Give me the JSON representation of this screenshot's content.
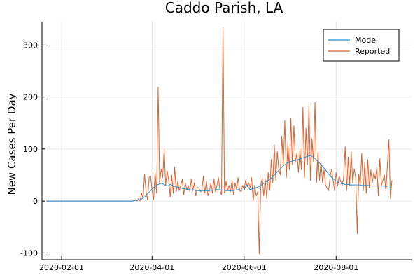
{
  "colors": {
    "model": "#1f8fd6",
    "reported": "#e0612c",
    "grid": "#e6e6e6",
    "axis": "#000000"
  },
  "chart_data": {
    "type": "line",
    "title": "Caddo Parish, LA",
    "xlabel": "",
    "ylabel": "New Cases Per Day",
    "xlim": [
      "2020-01-19",
      "2020-09-20"
    ],
    "ylim": [
      -113,
      345
    ],
    "x_ticks": [
      "2020-02-01",
      "2020-04-01",
      "2020-06-01",
      "2020-08-01"
    ],
    "y_ticks": [
      -100,
      0,
      100,
      200,
      300
    ],
    "grid": true,
    "legend_position": "top-right",
    "legend": [
      "Model",
      "Reported"
    ],
    "start_date": "2020-01-22",
    "series": [
      {
        "name": "Model",
        "values": [
          0,
          0,
          0,
          0,
          0,
          0,
          0,
          0,
          0,
          0,
          0,
          0,
          0,
          0,
          0,
          0,
          0,
          0,
          0,
          0,
          0,
          0,
          0,
          0,
          0,
          0,
          0,
          0,
          0,
          0,
          0,
          0,
          0,
          0,
          0,
          0,
          0,
          0,
          0,
          0,
          0,
          0,
          0,
          0,
          0,
          0,
          0,
          0,
          0,
          0,
          0,
          0,
          0,
          0,
          0,
          0,
          0,
          0,
          1,
          1,
          2,
          2,
          3,
          4,
          6,
          8,
          11,
          14,
          17,
          20,
          23,
          26,
          28,
          30,
          32,
          33,
          34,
          33,
          32,
          30,
          29,
          30,
          32,
          31,
          29,
          28,
          27,
          27,
          26,
          25,
          24,
          24,
          23,
          23,
          22,
          22,
          21,
          21,
          21,
          20,
          20,
          20,
          20,
          20,
          20,
          20,
          20,
          20,
          20,
          21,
          21,
          21,
          22,
          22,
          22,
          21,
          21,
          21,
          21,
          20,
          20,
          20,
          20,
          20,
          20,
          21,
          21,
          22,
          22,
          20,
          21,
          21,
          28,
          31,
          25,
          22,
          23,
          24,
          25,
          26,
          27,
          28,
          30,
          32,
          34,
          36,
          38,
          40,
          42,
          44,
          47,
          50,
          53,
          56,
          59,
          62,
          65,
          68,
          70,
          72,
          74,
          75,
          76,
          77,
          78,
          78,
          79,
          80,
          81,
          82,
          83,
          84,
          85,
          86,
          87,
          88,
          86,
          84,
          82,
          79,
          76,
          73,
          70,
          67,
          63,
          60,
          56,
          52,
          49,
          46,
          43,
          41,
          39,
          37,
          35,
          34,
          33,
          33,
          32,
          32,
          32,
          31,
          31,
          31,
          31,
          31,
          31,
          31,
          31,
          30,
          30,
          30,
          30,
          30,
          30,
          29,
          29,
          29,
          29,
          29,
          29,
          29,
          29,
          29,
          29,
          28,
          28
        ]
      },
      {
        "name": "Reported",
        "values": [
          0,
          0,
          0,
          0,
          0,
          0,
          0,
          0,
          0,
          0,
          0,
          0,
          0,
          0,
          0,
          0,
          0,
          0,
          0,
          0,
          0,
          0,
          0,
          0,
          0,
          0,
          0,
          0,
          0,
          0,
          0,
          0,
          0,
          0,
          0,
          0,
          0,
          0,
          0,
          0,
          0,
          0,
          0,
          0,
          0,
          0,
          0,
          0,
          0,
          0,
          0,
          0,
          0,
          0,
          0,
          0,
          0,
          0,
          0,
          3,
          0,
          5,
          0,
          15,
          4,
          52,
          18,
          2,
          45,
          48,
          20,
          3,
          55,
          15,
          219,
          35,
          62,
          45,
          100,
          30,
          58,
          40,
          8,
          50,
          15,
          65,
          18,
          38,
          20,
          30,
          42,
          12,
          35,
          22,
          30,
          18,
          42,
          20,
          35,
          10,
          26,
          25,
          18,
          20,
          48,
          15,
          38,
          10,
          20,
          35,
          15,
          42,
          18,
          30,
          45,
          20,
          12,
          333,
          15,
          38,
          20,
          30,
          18,
          40,
          12,
          35,
          22,
          45,
          20,
          18,
          30,
          22,
          40,
          28,
          35,
          25,
          45,
          0,
          30,
          10,
          18,
          -102,
          30,
          45,
          10,
          42,
          5,
          55,
          20,
          80,
          35,
          108,
          40,
          95,
          60,
          50,
          125,
          70,
          155,
          45,
          110,
          60,
          160,
          70,
          145,
          75,
          92,
          55,
          100,
          60,
          180,
          45,
          140,
          70,
          185,
          40,
          120,
          75,
          190,
          35,
          95,
          40,
          75,
          35,
          60,
          30,
          25,
          20,
          45,
          62,
          40,
          20,
          55,
          30,
          48,
          38,
          30,
          45,
          105,
          20,
          85,
          30,
          95,
          35,
          62,
          45,
          -63,
          52,
          30,
          92,
          20,
          75,
          15,
          80,
          25,
          60,
          35,
          55,
          42,
          65,
          10,
          82,
          30,
          40,
          50,
          20,
          70,
          118,
          5,
          40
        ]
      }
    ]
  }
}
